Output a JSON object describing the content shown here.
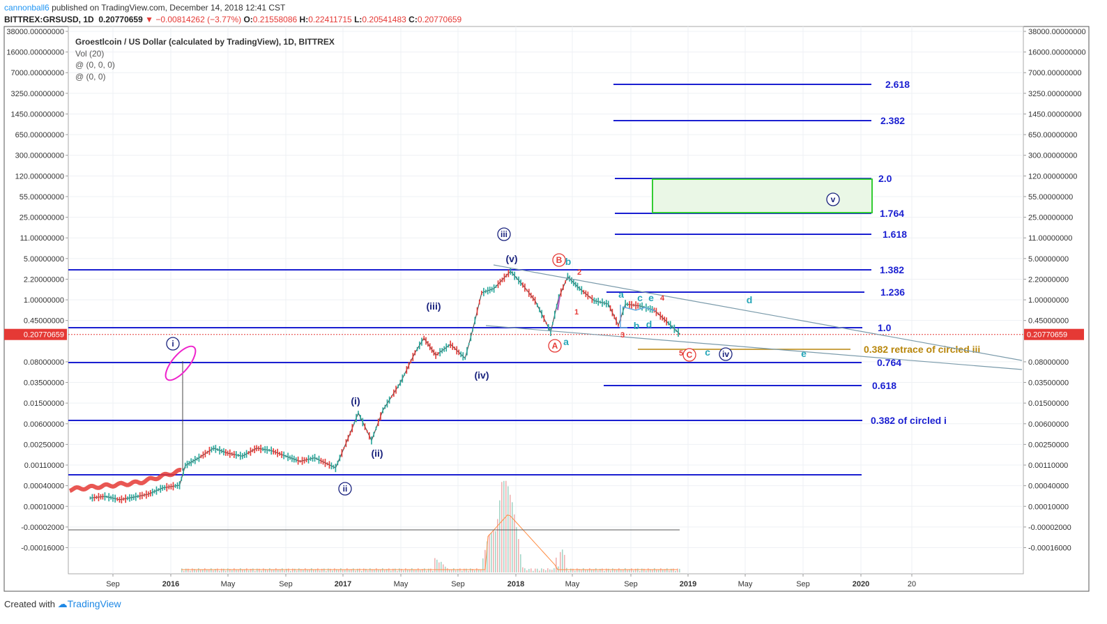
{
  "header": {
    "author": "cannonball6",
    "published_text": " published on TradingView.com, December 14, 2018 12:41 CST",
    "symbol_line": "BITTREX:GRSUSD, 1D",
    "last": "0.20770659",
    "change_arrow": "▼",
    "change": "−0.00814262 (−3.77%)",
    "o_label": "O:",
    "o": "0.21558086",
    "h_label": "H:",
    "h": "0.22411715",
    "l_label": "L:",
    "l": "0.20541483",
    "c_label": "C:",
    "c": "0.20770659"
  },
  "legend": {
    "title": "Groestlcoin / US Dollar (calculated by TradingView), 1D, BITTREX",
    "line2": "Vol (20)",
    "line3": "@ (0, 0, 0)",
    "line4": "@ (0, 0)"
  },
  "footer": {
    "created_with": "Created with",
    "brand": "TradingView"
  },
  "colors": {
    "fib_line": "#1a1fd1",
    "fib_text": "#1a1fd1",
    "gold": "#b8860b",
    "price_red": "#e53935",
    "bull": "#26a69a",
    "wave_navy": "#1a237e",
    "wave_teal": "#26a6b8",
    "wave_red": "#e53935",
    "box_green": "#33cc33",
    "magenta": "#ee22cc",
    "trend": "#7a9aaa"
  },
  "chart_data": {
    "type": "line",
    "title": "Groestlcoin / US Dollar (calculated by TradingView), 1D, BITTREX",
    "y_scale": "log",
    "y_tick_labels": [
      "38000.00000000",
      "16000.00000000",
      "7000.00000000",
      "3250.00000000",
      "1450.00000000",
      "650.00000000",
      "300.00000000",
      "120.00000000",
      "55.00000000",
      "25.00000000",
      "11.00000000",
      "5.00000000",
      "2.20000000",
      "1.00000000",
      "0.45000000",
      "0.20770659",
      "0.08000000",
      "0.03500000",
      "0.01500000",
      "0.00600000",
      "0.00250000",
      "0.00110000",
      "0.00040000",
      "0.00010000",
      "-0.00002000",
      "-0.00016000"
    ],
    "current_price": "0.20770659",
    "x_tick_labels": [
      "Sep",
      "2016",
      "May",
      "Sep",
      "2017",
      "May",
      "Sep",
      "2018",
      "May",
      "Sep",
      "2019",
      "May",
      "Sep",
      "2020",
      "20"
    ],
    "price_series": {
      "name": "GRSUSD",
      "points": [
        [
          "2015-07-15",
          0.0003
        ],
        [
          "2015-08-15",
          0.00032
        ],
        [
          "2015-09-01",
          0.0003
        ],
        [
          "2015-09-15",
          0.00028
        ],
        [
          "2015-10-15",
          0.00031
        ],
        [
          "2015-11-15",
          0.00035
        ],
        [
          "2015-12-15",
          0.00045
        ],
        [
          "2016-01-20",
          0.0005
        ],
        [
          "2016-02-01",
          0.0011
        ],
        [
          "2016-03-01",
          0.0015
        ],
        [
          "2016-04-01",
          0.0022
        ],
        [
          "2016-05-01",
          0.0018
        ],
        [
          "2016-06-01",
          0.0016
        ],
        [
          "2016-07-01",
          0.0022
        ],
        [
          "2016-08-01",
          0.002
        ],
        [
          "2016-09-01",
          0.0016
        ],
        [
          "2016-10-01",
          0.0013
        ],
        [
          "2016-11-01",
          0.0015
        ],
        [
          "2016-12-15",
          0.001
        ],
        [
          "2017-01-15",
          0.004
        ],
        [
          "2017-02-01",
          0.009
        ],
        [
          "2017-03-01",
          0.003
        ],
        [
          "2017-03-25",
          0.01
        ],
        [
          "2017-05-01",
          0.03
        ],
        [
          "2017-06-01",
          0.1
        ],
        [
          "2017-06-20",
          0.18
        ],
        [
          "2017-07-15",
          0.09
        ],
        [
          "2017-08-15",
          0.14
        ],
        [
          "2017-09-15",
          0.08
        ],
        [
          "2017-10-01",
          0.25
        ],
        [
          "2017-10-20",
          1.1
        ],
        [
          "2017-11-15",
          1.3
        ],
        [
          "2017-12-20",
          2.6
        ],
        [
          "2018-01-15",
          1.5
        ],
        [
          "2018-02-10",
          0.8
        ],
        [
          "2018-03-15",
          0.23
        ],
        [
          "2018-04-01",
          0.9
        ],
        [
          "2018-04-20",
          2.1
        ],
        [
          "2018-05-15",
          1.3
        ],
        [
          "2018-06-15",
          0.8
        ],
        [
          "2018-07-15",
          0.7
        ],
        [
          "2018-08-05",
          0.3
        ],
        [
          "2018-08-20",
          0.7
        ],
        [
          "2018-09-20",
          0.65
        ],
        [
          "2018-10-20",
          0.55
        ],
        [
          "2018-11-15",
          0.35
        ],
        [
          "2018-12-14",
          0.20770659
        ]
      ]
    },
    "volume_series": {
      "name": "Vol (20)",
      "peak_date": "2017-12-01"
    },
    "fib_levels": [
      {
        "label": "2.618",
        "price": 3250
      },
      {
        "label": "2.382",
        "price": 1450
      },
      {
        "label": "2.0",
        "price": 120
      },
      {
        "label": "1.764",
        "price": 25
      },
      {
        "label": "1.618",
        "price": 11
      },
      {
        "label": "1.382",
        "price": 2.6
      },
      {
        "label": "1.236",
        "price": 1.2
      },
      {
        "label": "1.0",
        "price": 0.3
      },
      {
        "label": "0.382 retrace of circled iii",
        "price": 0.15
      },
      {
        "label": "0.764",
        "price": 0.08
      },
      {
        "label": "0.618",
        "price": 0.03
      },
      {
        "label": "0.382 of circled i",
        "price": 0.007
      },
      {
        "label": "",
        "price": 0.00075
      }
    ],
    "wave_labels": [
      {
        "text": "i",
        "circled": true,
        "color": "navy"
      },
      {
        "text": "ii",
        "circled": true,
        "color": "navy"
      },
      {
        "text": "iii",
        "circled": true,
        "color": "navy"
      },
      {
        "text": "iv",
        "circled": true,
        "color": "navy"
      },
      {
        "text": "v",
        "circled": true,
        "color": "navy"
      },
      {
        "text": "(i)",
        "color": "navy"
      },
      {
        "text": "(ii)",
        "color": "navy"
      },
      {
        "text": "(iii)",
        "color": "navy"
      },
      {
        "text": "(iv)",
        "color": "navy"
      },
      {
        "text": "(v)",
        "color": "navy"
      },
      {
        "text": "A",
        "circled": true,
        "color": "red"
      },
      {
        "text": "B",
        "circled": true,
        "color": "red"
      },
      {
        "text": "C",
        "circled": true,
        "color": "red"
      },
      {
        "text": "a",
        "color": "teal"
      },
      {
        "text": "b",
        "color": "teal"
      },
      {
        "text": "a",
        "color": "teal"
      },
      {
        "text": "b",
        "color": "teal"
      },
      {
        "text": "c",
        "color": "teal"
      },
      {
        "text": "d",
        "color": "teal"
      },
      {
        "text": "e",
        "color": "teal"
      },
      {
        "text": "c",
        "color": "teal"
      },
      {
        "text": "d",
        "color": "teal"
      },
      {
        "text": "e",
        "color": "teal"
      },
      {
        "text": "1",
        "color": "red"
      },
      {
        "text": "2",
        "color": "red"
      },
      {
        "text": "3",
        "color": "red"
      },
      {
        "text": "4",
        "color": "red"
      },
      {
        "text": "5",
        "color": "red"
      }
    ]
  }
}
